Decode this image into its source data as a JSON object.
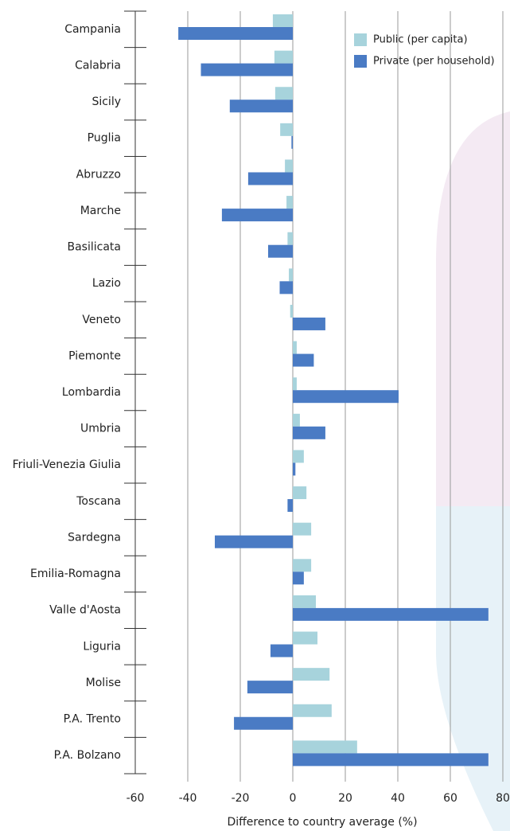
{
  "chart_data": {
    "type": "hbar",
    "categories": [
      "Campania",
      "Calabria",
      "Sicily",
      "Puglia",
      "Abruzzo",
      "Marche",
      "Basilicata",
      "Lazio",
      "Veneto",
      "Piemonte",
      "Lombardia",
      "Umbria",
      "Friuli-Venezia Giulia",
      "Toscana",
      "Sardegna",
      "Emilia-Romagna",
      "Valle d'Aosta",
      "Liguria",
      "Molise",
      "P.A. Trento",
      "P.A. Bolzano"
    ],
    "series": [
      {
        "name": "Public (per capita)",
        "color": "#a7d3dc",
        "values": [
          -7.6,
          -7,
          -6.7,
          -4.8,
          -3,
          -2.4,
          -2,
          -1.5,
          -1,
          1.5,
          1.5,
          2.7,
          4.2,
          5.2,
          7,
          7,
          8.8,
          9.4,
          14,
          14.8,
          24.5
        ]
      },
      {
        "name": "Private (per household)",
        "color": "#4a7bc4",
        "values": [
          -43.6,
          -35,
          -24,
          -0.5,
          -17,
          -27,
          -9.4,
          -5,
          12.4,
          8,
          40.3,
          12.4,
          1,
          -2,
          -29.7,
          4.2,
          74.5,
          -8.5,
          -17.3,
          -22.4,
          74.5
        ]
      }
    ],
    "xlim": [
      -60,
      80
    ],
    "xticks": [
      -60,
      -40,
      -20,
      0,
      20,
      40,
      60,
      80
    ],
    "xlabel": "Difference to country average (%)",
    "grid": true,
    "legend": "upper right"
  }
}
